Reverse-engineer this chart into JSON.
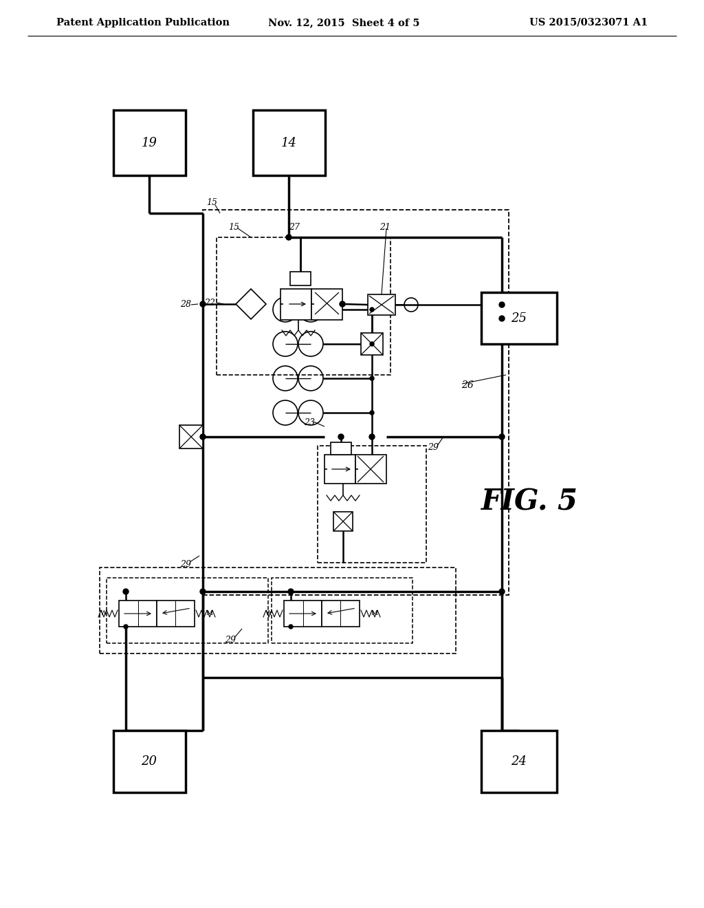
{
  "bg_color": "#ffffff",
  "header_left": "Patent Application Publication",
  "header_mid": "Nov. 12, 2015  Sheet 4 of 5",
  "header_right": "US 2015/0323071 A1",
  "fig_label": "FIG. 5",
  "lw_thick": 2.5,
  "lw_med": 1.8,
  "lw_thin": 1.2
}
